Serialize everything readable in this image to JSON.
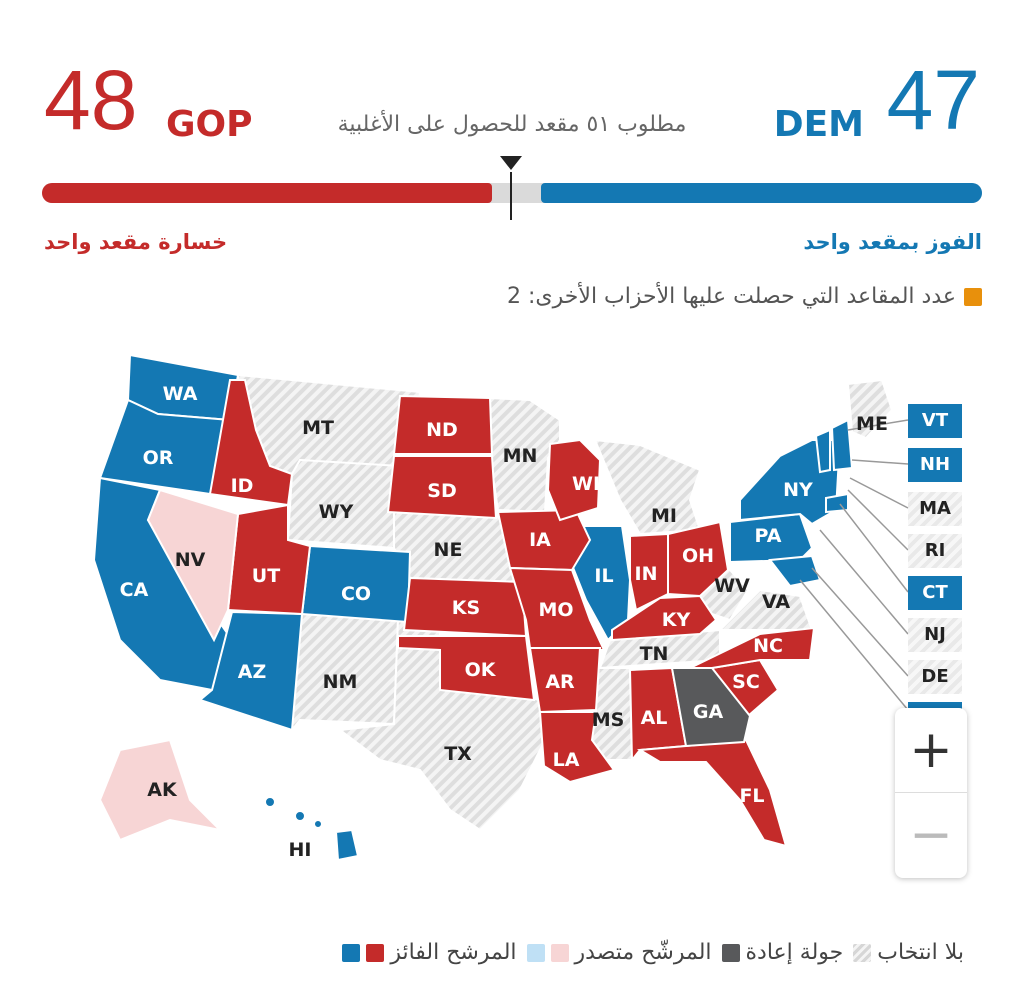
{
  "header": {
    "gop_count": "48",
    "gop_label": "GOP",
    "dem_count": "47",
    "dem_label": "DEM",
    "majority_text": "مطلوب ٥١ مقعد للحصول على الأغلبية",
    "gop_change": "خسارة مقعد واحد",
    "dem_change": "الفوز بمقعد واحد",
    "others_text": "عدد المقاعد التي حصلت عليها الأحزاب الأخرى: 2"
  },
  "colors": {
    "gop": "#c42b2a",
    "dem": "#1478b3",
    "gop_leading": "#f7d5d5",
    "dem_leading": "#bfe0f5",
    "runoff": "#58595b",
    "no_election": "#e6e6e6",
    "others": "#e8900c"
  },
  "states": {
    "WA": "WA",
    "OR": "OR",
    "CA": "CA",
    "NV": "NV",
    "ID": "ID",
    "MT": "MT",
    "WY": "WY",
    "UT": "UT",
    "CO": "CO",
    "AZ": "AZ",
    "NM": "NM",
    "ND": "ND",
    "SD": "SD",
    "NE": "NE",
    "KS": "KS",
    "OK": "OK",
    "TX": "TX",
    "MN": "MN",
    "IA": "IA",
    "MO": "MO",
    "AR": "AR",
    "LA": "LA",
    "WI": "WI",
    "IL": "IL",
    "MI": "MI",
    "IN": "IN",
    "OH": "OH",
    "KY": "KY",
    "TN": "TN",
    "MS": "MS",
    "AL": "AL",
    "GA": "GA",
    "FL": "FL",
    "SC": "SC",
    "NC": "NC",
    "VA": "VA",
    "WV": "WV",
    "PA": "PA",
    "NY": "NY",
    "ME": "ME",
    "AK": "AK",
    "HI": "HI"
  },
  "northeast": {
    "VT": "VT",
    "NH": "NH",
    "MA": "MA",
    "RI": "RI",
    "CT": "CT",
    "NJ": "NJ",
    "DE": "DE"
  },
  "zoom": {
    "in": "+",
    "out": "−"
  },
  "legend": {
    "winner": "المرشح الفائز",
    "leading": "المرشّح متصدر",
    "runoff": "جولة إعادة",
    "no_election": "بلا انتخاب"
  }
}
